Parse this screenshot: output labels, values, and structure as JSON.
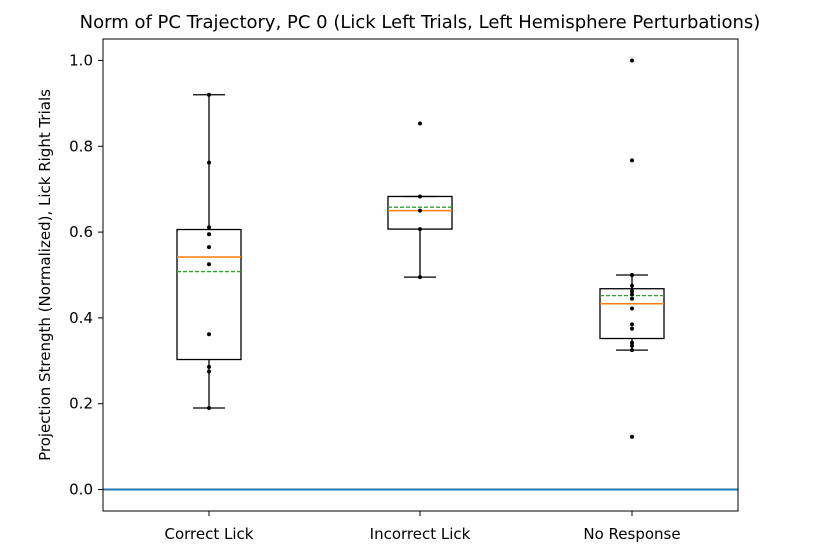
{
  "chart_data": {
    "type": "box",
    "title": "Norm of PC Trajectory, PC 0  (Lick Left Trials, Left Hemisphere Perturbations)",
    "xlabel": "",
    "ylabel": "Projection Strength (Normalized), Lick Right Trials",
    "ylim": [
      -0.05,
      1.05
    ],
    "yticks": [
      "0.0",
      "0.2",
      "0.4",
      "0.6",
      "0.8",
      "1.0"
    ],
    "ytick_values": [
      0.0,
      0.2,
      0.4,
      0.6,
      0.8,
      1.0
    ],
    "reference_line": {
      "y": 0.0,
      "color": "#1f77b4"
    },
    "colors": {
      "median": "#ff7f0e",
      "mean": "#2ca02c",
      "box": "#000000",
      "points": "#000000"
    },
    "grid": false,
    "categories": [
      "Correct Lick",
      "Incorrect Lick",
      "No Response"
    ],
    "groups": [
      {
        "label": "Correct Lick",
        "whisker_low": 0.19,
        "q1": 0.303,
        "median": 0.542,
        "q3": 0.606,
        "whisker_high": 0.92,
        "mean": 0.508,
        "points": [
          0.92,
          0.762,
          0.611,
          0.595,
          0.565,
          0.525,
          0.362,
          0.286,
          0.275,
          0.19
        ]
      },
      {
        "label": "Incorrect Lick",
        "whisker_low": 0.495,
        "q1": 0.607,
        "median": 0.65,
        "q3": 0.683,
        "whisker_high": 0.683,
        "mean": 0.658,
        "points": [
          0.853,
          0.683,
          0.65,
          0.607,
          0.495
        ]
      },
      {
        "label": "No Response",
        "whisker_low": 0.325,
        "q1": 0.352,
        "median": 0.433,
        "q3": 0.468,
        "whisker_high": 0.5,
        "mean": 0.452,
        "points": [
          1.0,
          0.767,
          0.5,
          0.475,
          0.462,
          0.455,
          0.445,
          0.422,
          0.385,
          0.375,
          0.342,
          0.335,
          0.325,
          0.123
        ]
      }
    ]
  }
}
